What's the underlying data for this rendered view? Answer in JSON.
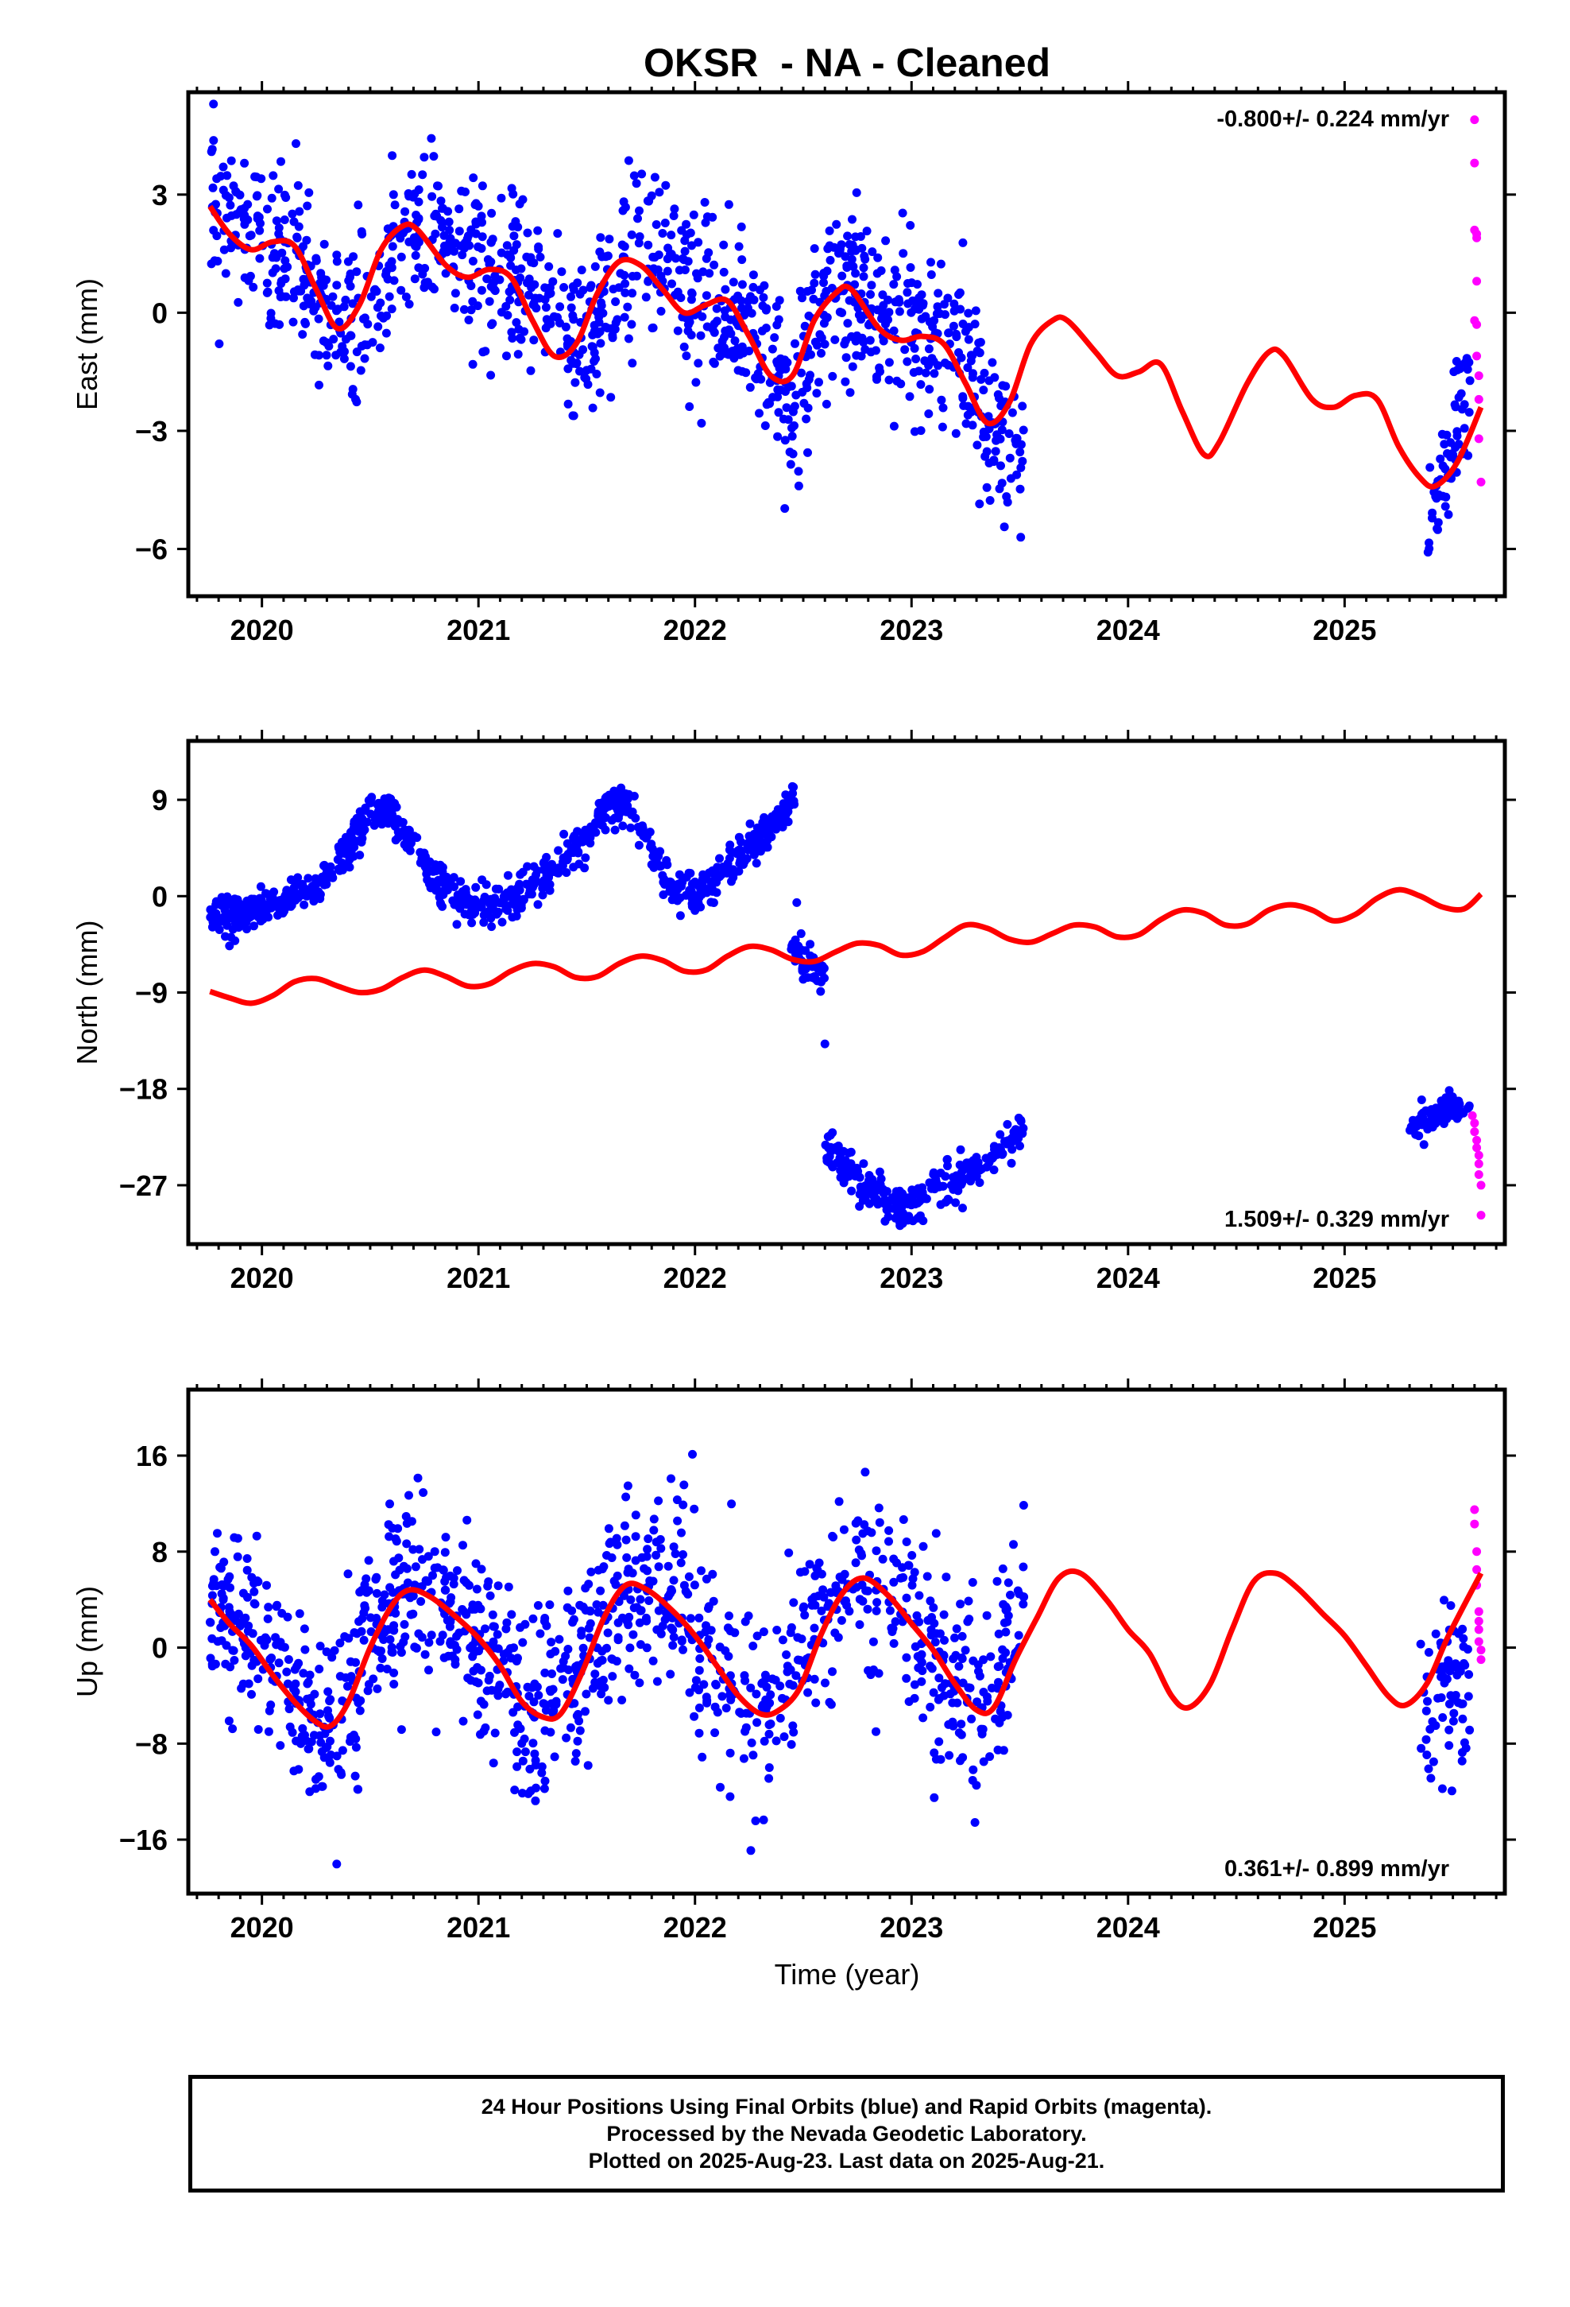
{
  "title": "OKSR  - NA - Cleaned",
  "xlabel": "Time (year)",
  "colors": {
    "final_orbits": "#0000ff",
    "rapid_orbits": "#ff00ff",
    "model": "#ff0000",
    "axes": "#000000"
  },
  "footer": {
    "line1": "24 Hour Positions Using Final Orbits (blue) and Rapid Orbits (magenta).",
    "line2": "Processed by the Nevada Geodetic Laboratory.",
    "line3": "Plotted on 2025-Aug-23. Last data on 2025-Aug-21."
  },
  "chart_data": [
    {
      "type": "scatter",
      "ylabel": "East (mm)",
      "annotation": "-0.800+/- 0.224 mm/yr",
      "annotation_position": "top-right",
      "xlim": [
        2019.66,
        2025.74
      ],
      "ylim": [
        -7.2,
        5.6
      ],
      "xticks": [
        2020,
        2021,
        2022,
        2023,
        2024,
        2025
      ],
      "yticks": [
        3,
        0,
        -3,
        -6
      ],
      "ytick_labels": [
        "3",
        "0",
        "−3",
        "−6"
      ],
      "grid": false,
      "final_orbits_segments": [
        {
          "x0": 2019.76,
          "x1": 2023.52,
          "noise": 1.05,
          "track": [
            [
              2019.76,
              3.2
            ],
            [
              2019.9,
              2.1
            ],
            [
              2020.1,
              1.5
            ],
            [
              2020.3,
              0.0
            ],
            [
              2020.45,
              -0.6
            ],
            [
              2020.6,
              1.2
            ],
            [
              2020.75,
              2.2
            ],
            [
              2020.95,
              1.3
            ],
            [
              2021.1,
              0.8
            ],
            [
              2021.3,
              0.3
            ],
            [
              2021.45,
              -1.0
            ],
            [
              2021.6,
              0.3
            ],
            [
              2021.75,
              1.8
            ],
            [
              2021.9,
              1.1
            ],
            [
              2022.05,
              0.1
            ],
            [
              2022.2,
              0.3
            ],
            [
              2022.35,
              -1.2
            ],
            [
              2022.45,
              -2.4
            ],
            [
              2022.6,
              0.2
            ],
            [
              2022.75,
              0.6
            ],
            [
              2022.9,
              -0.5
            ],
            [
              2023.05,
              -0.2
            ],
            [
              2023.2,
              -0.8
            ],
            [
              2023.35,
              -2.6
            ],
            [
              2023.52,
              -3.6
            ]
          ]
        },
        {
          "x0": 2025.38,
          "x1": 2025.58,
          "noise": 0.8,
          "track": [
            [
              2025.38,
              -5.2
            ],
            [
              2025.45,
              -4.4
            ],
            [
              2025.52,
              -3.0
            ],
            [
              2025.58,
              -1.6
            ]
          ]
        }
      ],
      "rapid_orbits": [
        [
          2025.6,
          4.9
        ],
        [
          2025.6,
          3.8
        ],
        [
          2025.6,
          2.1
        ],
        [
          2025.61,
          2.0
        ],
        [
          2025.61,
          1.9
        ],
        [
          2025.61,
          0.8
        ],
        [
          2025.6,
          -0.2
        ],
        [
          2025.61,
          -0.3
        ],
        [
          2025.61,
          -1.1
        ],
        [
          2025.62,
          -1.6
        ],
        [
          2025.62,
          -2.2
        ],
        [
          2025.62,
          -3.2
        ],
        [
          2025.63,
          -4.3
        ]
      ],
      "model": {
        "x": [
          2019.76,
          2019.85,
          2019.95,
          2020.05,
          2020.15,
          2020.25,
          2020.35,
          2020.45,
          2020.55,
          2020.65,
          2020.72,
          2020.85,
          2020.95,
          2021.05,
          2021.15,
          2021.25,
          2021.35,
          2021.45,
          2021.55,
          2021.65,
          2021.75,
          2021.85,
          2021.95,
          2022.05,
          2022.15,
          2022.25,
          2022.35,
          2022.45,
          2022.55,
          2022.65,
          2022.72,
          2022.85,
          2022.95,
          2023.05,
          2023.15,
          2023.25,
          2023.35,
          2023.45,
          2023.55,
          2023.65,
          2023.72,
          2023.85,
          2023.95,
          2024.05,
          2024.15,
          2024.25,
          2024.35,
          2024.42,
          2024.55,
          2024.65,
          2024.72,
          2024.85,
          2024.95,
          2025.05,
          2025.15,
          2025.25,
          2025.35,
          2025.42,
          2025.52,
          2025.63
        ],
        "y": [
          2.7,
          2.0,
          1.6,
          1.8,
          1.7,
          0.6,
          -0.4,
          0.2,
          1.6,
          2.2,
          2.1,
          1.2,
          0.9,
          1.1,
          0.9,
          -0.2,
          -1.1,
          -0.8,
          0.5,
          1.3,
          1.2,
          0.6,
          0.0,
          0.2,
          0.3,
          -0.6,
          -1.6,
          -1.6,
          -0.2,
          0.5,
          0.6,
          -0.4,
          -0.7,
          -0.6,
          -0.8,
          -1.8,
          -2.8,
          -2.3,
          -0.8,
          -0.2,
          -0.2,
          -1.0,
          -1.6,
          -1.5,
          -1.3,
          -2.5,
          -3.6,
          -3.3,
          -1.8,
          -1.0,
          -1.1,
          -2.2,
          -2.4,
          -2.1,
          -2.2,
          -3.4,
          -4.2,
          -4.4,
          -3.8,
          -2.4
        ]
      }
    },
    {
      "type": "scatter",
      "ylabel": "North (mm)",
      "annotation": "1.509+/- 0.329 mm/yr",
      "annotation_position": "bottom-right",
      "xlim": [
        2019.66,
        2025.74
      ],
      "ylim": [
        -32.5,
        14.5
      ],
      "xticks": [
        2020,
        2021,
        2022,
        2023,
        2024,
        2025
      ],
      "yticks": [
        9,
        0,
        -9,
        -18,
        -27
      ],
      "ytick_labels": [
        "9",
        "0",
        "−9",
        "−18",
        "−27"
      ],
      "grid": false,
      "final_orbits_segments": [
        {
          "x0": 2019.76,
          "x1": 2022.46,
          "noise": 0.9,
          "track": [
            [
              2019.76,
              -1.8
            ],
            [
              2019.95,
              -1.5
            ],
            [
              2020.1,
              -0.5
            ],
            [
              2020.25,
              1.2
            ],
            [
              2020.4,
              4.2
            ],
            [
              2020.5,
              7.8
            ],
            [
              2020.6,
              7.5
            ],
            [
              2020.7,
              5.0
            ],
            [
              2020.8,
              1.2
            ],
            [
              2020.95,
              -0.5
            ],
            [
              2021.05,
              -1.0
            ],
            [
              2021.2,
              0.2
            ],
            [
              2021.35,
              2.5
            ],
            [
              2021.48,
              5.0
            ],
            [
              2021.6,
              8.5
            ],
            [
              2021.7,
              8.6
            ],
            [
              2021.8,
              4.0
            ],
            [
              2021.9,
              0.8
            ],
            [
              2022.0,
              0.0
            ],
            [
              2022.15,
              2.2
            ],
            [
              2022.3,
              5.5
            ],
            [
              2022.46,
              8.5
            ]
          ]
        },
        {
          "x0": 2022.44,
          "x1": 2022.6,
          "noise": 0.7,
          "track": [
            [
              2022.44,
              -4.5
            ],
            [
              2022.5,
              -6.3
            ],
            [
              2022.6,
              -7.5
            ]
          ]
        },
        {
          "x0": 2022.6,
          "x1": 2023.52,
          "noise": 0.9,
          "track": [
            [
              2022.6,
              -22.8
            ],
            [
              2022.75,
              -26.5
            ],
            [
              2022.95,
              -29.2
            ],
            [
              2023.1,
              -27.5
            ],
            [
              2023.3,
              -25.5
            ],
            [
              2023.52,
              -21.5
            ]
          ]
        },
        {
          "x0": 2025.3,
          "x1": 2025.58,
          "noise": 0.7,
          "track": [
            [
              2025.3,
              -21.5
            ],
            [
              2025.45,
              -20.0
            ],
            [
              2025.58,
              -19.3
            ]
          ]
        }
      ],
      "final_orbits_extra": [
        [
          2022.49,
          -3.5
        ],
        [
          2022.47,
          -0.6
        ],
        [
          2022.58,
          -8.9
        ],
        [
          2022.6,
          -13.8
        ]
      ],
      "rapid_orbits": [
        [
          2025.59,
          -20.5
        ],
        [
          2025.6,
          -21.2
        ],
        [
          2025.6,
          -22.0
        ],
        [
          2025.61,
          -22.8
        ],
        [
          2025.61,
          -23.5
        ],
        [
          2025.62,
          -24.2
        ],
        [
          2025.62,
          -25.0
        ],
        [
          2025.62,
          -26.0
        ],
        [
          2025.63,
          -27.0
        ],
        [
          2025.63,
          -29.8
        ]
      ],
      "model": {
        "x": [
          2019.76,
          2019.85,
          2019.95,
          2020.05,
          2020.15,
          2020.25,
          2020.35,
          2020.45,
          2020.55,
          2020.65,
          2020.75,
          2020.85,
          2020.95,
          2021.05,
          2021.15,
          2021.25,
          2021.35,
          2021.45,
          2021.55,
          2021.65,
          2021.75,
          2021.85,
          2021.95,
          2022.05,
          2022.15,
          2022.25,
          2022.35,
          2022.45,
          2022.55,
          2022.65,
          2022.75,
          2022.85,
          2022.95,
          2023.05,
          2023.15,
          2023.25,
          2023.35,
          2023.45,
          2023.55,
          2023.65,
          2023.75,
          2023.85,
          2023.95,
          2024.05,
          2024.15,
          2024.25,
          2024.35,
          2024.45,
          2024.55,
          2024.65,
          2024.75,
          2024.85,
          2024.95,
          2025.05,
          2025.15,
          2025.25,
          2025.35,
          2025.45,
          2025.55,
          2025.63
        ],
        "y": [
          -8.9,
          -9.5,
          -10.0,
          -9.3,
          -8.0,
          -7.7,
          -8.4,
          -9.0,
          -8.7,
          -7.6,
          -6.9,
          -7.5,
          -8.4,
          -8.2,
          -7.0,
          -6.3,
          -6.6,
          -7.6,
          -7.5,
          -6.3,
          -5.6,
          -6.0,
          -7.0,
          -6.9,
          -5.6,
          -4.7,
          -5.0,
          -5.9,
          -6.1,
          -5.2,
          -4.4,
          -4.6,
          -5.5,
          -5.2,
          -3.9,
          -2.7,
          -3.0,
          -4.0,
          -4.3,
          -3.5,
          -2.7,
          -2.9,
          -3.8,
          -3.6,
          -2.2,
          -1.3,
          -1.6,
          -2.7,
          -2.6,
          -1.3,
          -0.8,
          -1.3,
          -2.3,
          -1.7,
          -0.2,
          0.6,
          0.0,
          -1.0,
          -1.2,
          0.2
        ]
      }
    },
    {
      "type": "scatter",
      "ylabel": "Up (mm)",
      "annotation": "0.361+/- 0.899 mm/yr",
      "annotation_position": "bottom-right",
      "xlim": [
        2019.66,
        2025.74
      ],
      "ylim": [
        -20.5,
        21.5
      ],
      "xticks": [
        2020,
        2021,
        2022,
        2023,
        2024,
        2025
      ],
      "yticks": [
        16,
        8,
        0,
        -8,
        -16
      ],
      "ytick_labels": [
        "16",
        "8",
        "0",
        "−8",
        "−16"
      ],
      "grid": false,
      "final_orbits_segments": [
        {
          "x0": 2019.76,
          "x1": 2023.52,
          "noise": 4.0,
          "track": [
            [
              2019.76,
              4.0
            ],
            [
              2019.95,
              1.0
            ],
            [
              2020.1,
              -3.0
            ],
            [
              2020.25,
              -6.5
            ],
            [
              2020.35,
              -5.5
            ],
            [
              2020.5,
              0.5
            ],
            [
              2020.65,
              4.5
            ],
            [
              2020.75,
              4.5
            ],
            [
              2020.9,
              2.0
            ],
            [
              2021.05,
              -1.0
            ],
            [
              2021.2,
              -5.0
            ],
            [
              2021.3,
              -6.0
            ],
            [
              2021.45,
              -2.0
            ],
            [
              2021.6,
              2.5
            ],
            [
              2021.75,
              5.5
            ],
            [
              2021.9,
              4.5
            ],
            [
              2022.05,
              0.0
            ],
            [
              2022.2,
              -4.0
            ],
            [
              2022.3,
              -5.5
            ],
            [
              2022.45,
              -2.0
            ],
            [
              2022.6,
              3.5
            ],
            [
              2022.75,
              6.0
            ],
            [
              2022.9,
              4.5
            ],
            [
              2023.05,
              1.5
            ],
            [
              2023.2,
              -3.0
            ],
            [
              2023.3,
              -5.5
            ],
            [
              2023.45,
              1.0
            ],
            [
              2023.52,
              3.5
            ]
          ]
        },
        {
          "x0": 2025.35,
          "x1": 2025.58,
          "noise": 3.5,
          "track": [
            [
              2025.35,
              -5.5
            ],
            [
              2025.45,
              -3.5
            ],
            [
              2025.58,
              -2.0
            ]
          ]
        }
      ],
      "rapid_orbits": [
        [
          2025.6,
          11.5
        ],
        [
          2025.6,
          10.3
        ],
        [
          2025.61,
          8.0
        ],
        [
          2025.61,
          6.5
        ],
        [
          2025.61,
          5.2
        ],
        [
          2025.62,
          3.0
        ],
        [
          2025.62,
          2.2
        ],
        [
          2025.62,
          1.5
        ],
        [
          2025.62,
          0.5
        ],
        [
          2025.63,
          -0.2
        ],
        [
          2025.63,
          -1.0
        ]
      ],
      "model": {
        "x": [
          2019.76,
          2019.85,
          2019.95,
          2020.05,
          2020.15,
          2020.25,
          2020.32,
          2020.4,
          2020.5,
          2020.6,
          2020.68,
          2020.78,
          2020.9,
          2021.0,
          2021.1,
          2021.2,
          2021.3,
          2021.38,
          2021.48,
          2021.58,
          2021.68,
          2021.78,
          2021.9,
          2022.0,
          2022.1,
          2022.2,
          2022.3,
          2022.38,
          2022.48,
          2022.58,
          2022.68,
          2022.78,
          2022.9,
          2023.0,
          2023.1,
          2023.2,
          2023.3,
          2023.38,
          2023.48,
          2023.58,
          2023.68,
          2023.78,
          2023.9,
          2024.0,
          2024.1,
          2024.2,
          2024.28,
          2024.38,
          2024.48,
          2024.58,
          2024.68,
          2024.78,
          2024.9,
          2025.0,
          2025.1,
          2025.2,
          2025.28,
          2025.38,
          2025.48,
          2025.63
        ],
        "y": [
          4.0,
          2.0,
          0.2,
          -2.3,
          -4.5,
          -6.2,
          -6.5,
          -4.5,
          0.0,
          3.5,
          4.8,
          4.2,
          2.5,
          0.8,
          -1.5,
          -4.5,
          -5.8,
          -5.5,
          -2.0,
          2.5,
          5.2,
          4.8,
          3.0,
          1.0,
          -1.5,
          -4.0,
          -5.5,
          -5.3,
          -3.5,
          1.0,
          4.5,
          5.8,
          4.2,
          2.0,
          -0.2,
          -3.0,
          -5.2,
          -5.0,
          -1.0,
          2.5,
          5.8,
          6.2,
          4.0,
          1.5,
          -0.5,
          -4.0,
          -5.0,
          -3.0,
          1.5,
          5.5,
          6.2,
          5.0,
          2.8,
          1.0,
          -1.5,
          -4.0,
          -4.8,
          -3.0,
          1.0,
          6.2
        ]
      }
    }
  ]
}
